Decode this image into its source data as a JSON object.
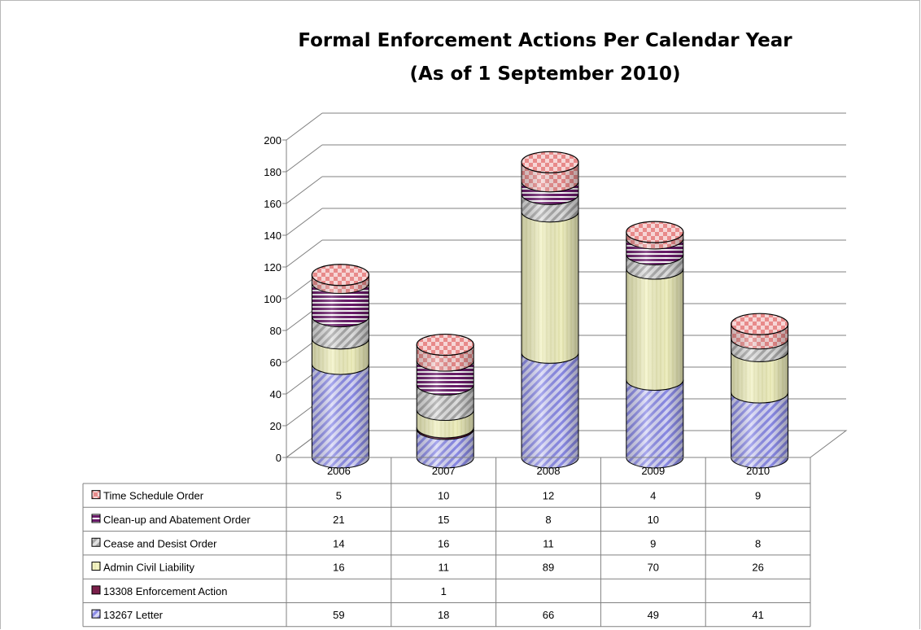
{
  "chart_data": {
    "type": "bar",
    "stacked": true,
    "style": "3d-cylinder",
    "title": "Formal Enforcement Actions Per Calendar Year",
    "subtitle": "(As of 1 September 2010)",
    "categories": [
      "2006",
      "2007",
      "2008",
      "2009",
      "2010"
    ],
    "ylim": [
      0,
      200
    ],
    "yticks": [
      0,
      20,
      40,
      60,
      80,
      100,
      120,
      140,
      160,
      180,
      200
    ],
    "grid": true,
    "legend": "data-table",
    "series": [
      {
        "name": "13267 Letter",
        "values": [
          59,
          18,
          66,
          49,
          41
        ],
        "color": "#8c8ce8",
        "pattern": "diagonal"
      },
      {
        "name": "13308 Enforcement Action",
        "values": [
          null,
          1,
          null,
          null,
          null
        ],
        "color": "#7a1f4a",
        "pattern": "solid"
      },
      {
        "name": "Admin Civil Liability",
        "values": [
          16,
          11,
          89,
          70,
          26
        ],
        "color": "#f3f3c4",
        "pattern": "vertical"
      },
      {
        "name": "Cease and Desist Order",
        "values": [
          14,
          16,
          11,
          9,
          8
        ],
        "color": "#a8a8a8",
        "pattern": "diagonal"
      },
      {
        "name": "Clean-up and Abatement Order",
        "values": [
          21,
          15,
          8,
          10,
          null
        ],
        "color": "#6a1a6a",
        "pattern": "horizontal"
      },
      {
        "name": "Time Schedule Order",
        "values": [
          5,
          10,
          12,
          4,
          9
        ],
        "color": "#e88a8a",
        "pattern": "checker"
      }
    ]
  }
}
